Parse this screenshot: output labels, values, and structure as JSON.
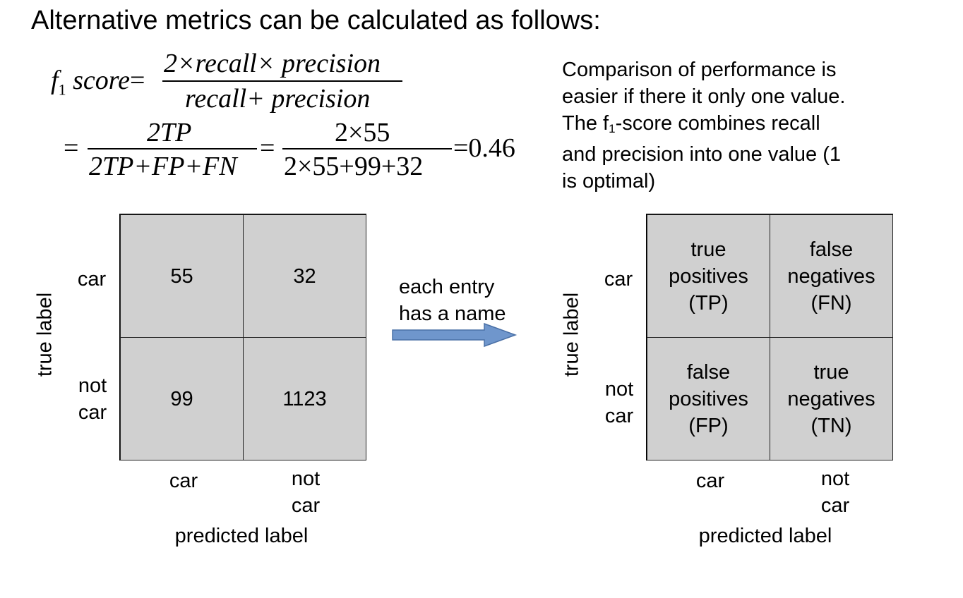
{
  "title": "Alternative metrics can be calculated as follows:",
  "formula": {
    "lhs_f": "f",
    "lhs_sub": "1",
    "lhs_score": "score",
    "eq1": "=",
    "frac1_num": "2×recall× precision",
    "frac1_den": "recall+ precision",
    "eq2": "=",
    "frac2_num": "2TP",
    "frac2_den": "2TP+FP+FN",
    "eq3": "=",
    "frac3_num": "2×55",
    "frac3_den": "2×55+99+32",
    "result": "=0.46"
  },
  "description": {
    "line1": "Comparison of performance is",
    "line2": "easier if there it only one value.",
    "line3_pre": "The f",
    "line3_sub": "1",
    "line3_post": "-score combines recall",
    "line4": "and precision into one value (1",
    "line5": "is optimal)"
  },
  "left_matrix": {
    "y_axis_label": "true label",
    "row1_label": "car",
    "row2_label": "not\ncar",
    "col1_label": "car",
    "col2_label": "not\ncar",
    "x_axis_label": "predicted label",
    "cells": [
      "55",
      "32",
      "99",
      "1123"
    ]
  },
  "arrow_text": "each entry\nhas a name",
  "arrow_color": "#6f96cc",
  "right_matrix": {
    "y_axis_label": "true label",
    "row1_label": "car",
    "row2_label": "not\ncar",
    "col1_label": "car",
    "col2_label": "not\ncar",
    "x_axis_label": "predicted label",
    "cells": [
      "true\npositives\n(TP)",
      "false\nnegatives\n(FN)",
      "false\npositives\n(FP)",
      "true\nnegatives\n(TN)"
    ]
  },
  "cell_color": "#d0d0d0"
}
